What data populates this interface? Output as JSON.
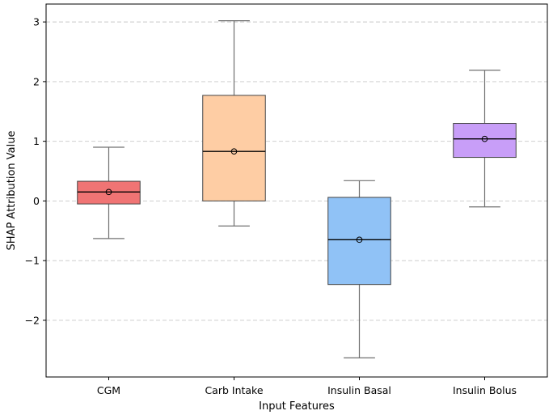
{
  "chart_data": {
    "type": "box",
    "xlabel": "Input Features",
    "ylabel": "SHAP Attribution Value",
    "ylim": [
      -2.95,
      3.3
    ],
    "yticks": [
      -2,
      -1,
      0,
      1,
      2,
      3
    ],
    "ytick_labels": [
      "−2",
      "−1",
      "0",
      "1",
      "2",
      "3"
    ],
    "grid": "horizontal dashed",
    "categories": [
      "CGM",
      "Carb Intake",
      "Insulin Basal",
      "Insulin Bolus"
    ],
    "boxes": [
      {
        "whisker_low": -0.63,
        "q1": -0.05,
        "median": 0.15,
        "q3": 0.33,
        "whisker_high": 0.9,
        "mean": 0.15,
        "color": "#f07474"
      },
      {
        "whisker_low": -0.42,
        "q1": 0.0,
        "median": 0.83,
        "q3": 1.77,
        "whisker_high": 3.02,
        "mean": 0.83,
        "color": "#fecda4"
      },
      {
        "whisker_low": -2.63,
        "q1": -1.4,
        "median": -0.65,
        "q3": 0.06,
        "whisker_high": 0.34,
        "mean": -0.65,
        "color": "#90c2f6"
      },
      {
        "whisker_low": -0.1,
        "q1": 0.73,
        "median": 1.04,
        "q3": 1.3,
        "whisker_high": 2.19,
        "mean": 1.04,
        "color": "#c89ef8"
      }
    ]
  }
}
